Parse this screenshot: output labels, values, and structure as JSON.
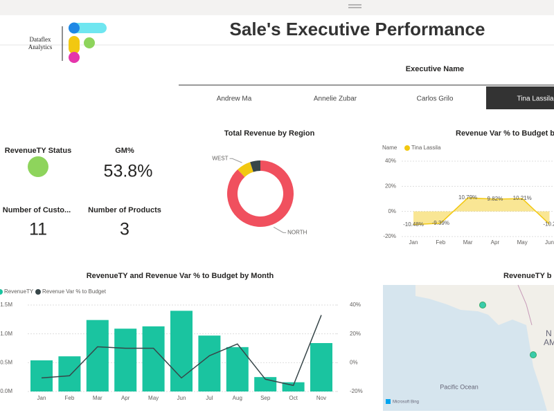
{
  "header": {
    "brand": [
      "Dataflex",
      "Analytics"
    ],
    "title": "Sale's Executive Performance"
  },
  "slicer": {
    "title": "Executive Name",
    "options": [
      "Andrew Ma",
      "Annelie Zubar",
      "Carlos Grilo",
      "Tina Lassila"
    ],
    "selected": 3
  },
  "kpis": [
    {
      "label": "RevenueTY Status",
      "color": "#8ed45c"
    },
    {
      "label": "GM%",
      "value": "53.8%"
    },
    {
      "label": "Number of Custo...",
      "value": "11"
    },
    {
      "label": "Number of Products",
      "value": "3"
    }
  ],
  "chart_data": [
    {
      "type": "donut",
      "title": "Total Revenue by Region",
      "categories": [
        "NORTH",
        "WEST",
        null
      ],
      "values": [
        88,
        7,
        5
      ],
      "colors": [
        "#f0505e",
        "#f2c811",
        "#374649"
      ]
    },
    {
      "type": "line",
      "title": "Revenue Var % to Budget b",
      "legend_title": "Name",
      "categories": [
        "Jan",
        "Feb",
        "Mar",
        "Apr",
        "May",
        "Jun"
      ],
      "series": [
        {
          "name": "Tina Lassila",
          "color": "#f2c811",
          "values": [
            -10.48,
            -9.39,
            10.79,
            9.82,
            10.21,
            -10.2
          ],
          "value_labels": [
            "-10.48%",
            "-9.39%",
            "10.79%",
            "9.82%",
            "10.21%",
            "-10.2"
          ]
        }
      ],
      "ylim": [
        -20,
        40
      ],
      "yticks": [
        {
          "value": -20,
          "label": "-20%"
        },
        {
          "value": 0,
          "label": "0%"
        },
        {
          "value": 20,
          "label": "20%"
        },
        {
          "value": 40,
          "label": "40%"
        }
      ],
      "grid": true
    },
    {
      "type": "combo",
      "title": "RevenueTY and Revenue Var % to Budget by Month",
      "categories": [
        "Jan",
        "Feb",
        "Mar",
        "Apr",
        "May",
        "Jun",
        "Jul",
        "Aug",
        "Sep",
        "Oct",
        "Nov"
      ],
      "series": [
        {
          "name": "RevenueTY",
          "type": "bar",
          "color": "#1ac4a0",
          "values": [
            0.54,
            0.61,
            1.24,
            1.09,
            1.13,
            1.4,
            0.97,
            0.77,
            0.25,
            0.16,
            0.84
          ]
        },
        {
          "name": "Revenue Var % to Budget",
          "type": "line",
          "axis": "y2",
          "color": "#374649",
          "values": [
            -10.6,
            -9.1,
            11,
            10,
            10,
            -10.6,
            4.8,
            13,
            -11.5,
            -15.8,
            33
          ]
        }
      ],
      "ylim": [
        0,
        1.6
      ],
      "yticks": [
        {
          "value": 0,
          "label": "0.0M"
        },
        {
          "value": 0.5,
          "label": "0.5M"
        },
        {
          "value": 1,
          "label": "1.0M"
        },
        {
          "value": 1.5,
          "label": "1.5M"
        }
      ],
      "y2lim": [
        -20,
        40
      ],
      "y2ticks": [
        {
          "value": -20,
          "label": "-20%"
        },
        {
          "value": 0,
          "label": "0%"
        },
        {
          "value": 20,
          "label": "20%"
        },
        {
          "value": 40,
          "label": "40%"
        }
      ],
      "grid": true
    },
    {
      "type": "map",
      "title": "RevenueTY b",
      "labels": [
        "Pacific Ocean",
        "N",
        "AM",
        "Microsoft Bing"
      ],
      "color": "#1ac4a0"
    }
  ]
}
